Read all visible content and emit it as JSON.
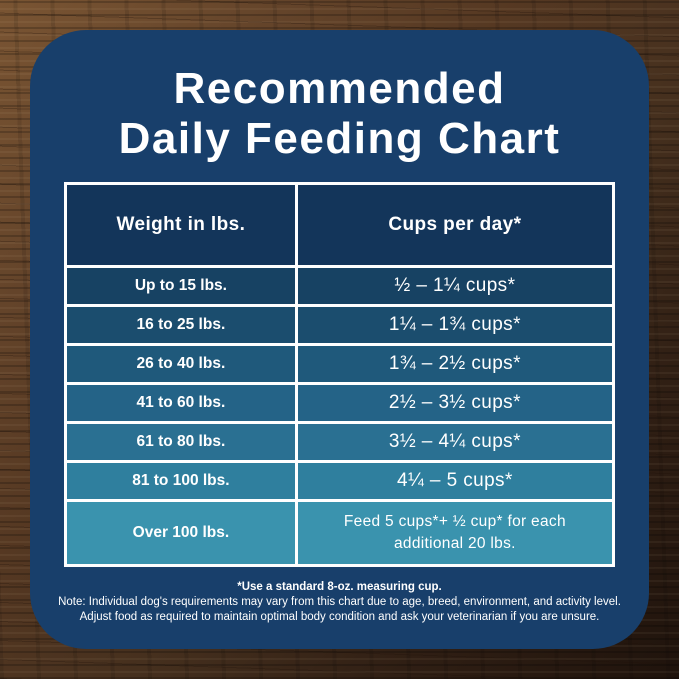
{
  "title": {
    "line1": "Recommended",
    "line2": "Daily Feeding Chart"
  },
  "chart_data": {
    "type": "table",
    "title": "Recommended Daily Feeding Chart",
    "columns": [
      "Weight in lbs.",
      "Cups per day*"
    ],
    "rows": [
      [
        "Up to 15 lbs.",
        "½ – 1¼ cups*"
      ],
      [
        "16 to 25 lbs.",
        "1¼ – 1¾  cups*"
      ],
      [
        "26 to 40 lbs.",
        "1¾ – 2½ cups*"
      ],
      [
        "41 to 60 lbs.",
        "2½ – 3½ cups*"
      ],
      [
        "61 to 80 lbs.",
        "3½ – 4¼ cups*"
      ],
      [
        "81 to 100 lbs.",
        "4¼ – 5 cups*"
      ],
      [
        "Over 100 lbs.",
        "Feed 5 cups*+ ½ cup* for each\nadditional 20 lbs."
      ]
    ],
    "footnotes": [
      "*Use a standard 8-oz. measuring cup.",
      "Note: Individual dog's requirements may vary from this chart due to age, breed, environment, and activity level.",
      "Adjust food as required to maintain optimal body condition and ask your veterinarian if you are unsure."
    ]
  },
  "style": {
    "card_bg": "#183F6B",
    "header_bg": "#13355A",
    "row_colors": [
      "#174263",
      "#1B4D6E",
      "#1F597B",
      "#246387",
      "#2A7092",
      "#2F7F9E",
      "#3A93AE"
    ],
    "table_border_color": "#FFFFFF",
    "text_color": "#FFFFFF",
    "wood_light": "#7A5533",
    "wood_dark": "#1F130C"
  }
}
